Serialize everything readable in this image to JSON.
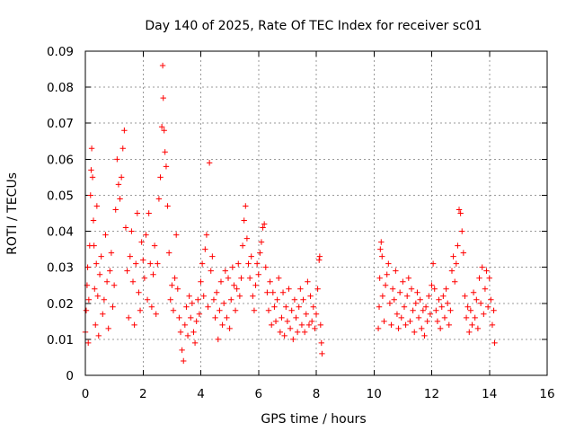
{
  "chart_data": {
    "type": "scatter",
    "title": "Day 140 of 2025, Rate Of TEC Index for receiver sc01",
    "xlabel": "GPS time / hours",
    "ylabel": "ROTI / TECUs",
    "xlim": [
      0,
      16
    ],
    "ylim": [
      0,
      0.09
    ],
    "x_ticks": [
      0,
      2,
      4,
      6,
      8,
      10,
      12,
      14,
      16
    ],
    "y_ticks": [
      0,
      0.01,
      0.02,
      0.03,
      0.04,
      0.05,
      0.06,
      0.07,
      0.08,
      0.09
    ],
    "x_tick_labels": [
      "0",
      "2",
      "4",
      "6",
      "8",
      "10",
      "12",
      "14",
      "16"
    ],
    "y_tick_labels": [
      "0",
      "0.01",
      "0.02",
      "0.03",
      "0.04",
      "0.05",
      "0.06",
      "0.07",
      "0.08",
      "0.09"
    ],
    "grid": true,
    "marker": "+",
    "color": "#ff0000",
    "series": [
      {
        "name": "sc01",
        "points": [
          [
            0.0,
            0.012
          ],
          [
            0.03,
            0.018
          ],
          [
            0.06,
            0.025
          ],
          [
            0.08,
            0.03
          ],
          [
            0.1,
            0.009
          ],
          [
            0.12,
            0.021
          ],
          [
            0.15,
            0.036
          ],
          [
            0.18,
            0.05
          ],
          [
            0.2,
            0.057
          ],
          [
            0.22,
            0.063
          ],
          [
            0.25,
            0.055
          ],
          [
            0.28,
            0.043
          ],
          [
            0.3,
            0.036
          ],
          [
            0.32,
            0.024
          ],
          [
            0.35,
            0.014
          ],
          [
            0.38,
            0.031
          ],
          [
            0.4,
            0.047
          ],
          [
            0.43,
            0.022
          ],
          [
            0.46,
            0.011
          ],
          [
            0.5,
            0.028
          ],
          [
            0.55,
            0.033
          ],
          [
            0.6,
            0.017
          ],
          [
            0.65,
            0.021
          ],
          [
            0.7,
            0.039
          ],
          [
            0.75,
            0.026
          ],
          [
            0.8,
            0.013
          ],
          [
            0.85,
            0.029
          ],
          [
            0.9,
            0.034
          ],
          [
            0.95,
            0.019
          ],
          [
            1.0,
            0.025
          ],
          [
            1.05,
            0.046
          ],
          [
            1.1,
            0.06
          ],
          [
            1.15,
            0.053
          ],
          [
            1.2,
            0.049
          ],
          [
            1.25,
            0.055
          ],
          [
            1.3,
            0.063
          ],
          [
            1.35,
            0.068
          ],
          [
            1.4,
            0.041
          ],
          [
            1.45,
            0.029
          ],
          [
            1.5,
            0.016
          ],
          [
            1.55,
            0.033
          ],
          [
            1.6,
            0.04
          ],
          [
            1.65,
            0.026
          ],
          [
            1.7,
            0.014
          ],
          [
            1.75,
            0.031
          ],
          [
            1.8,
            0.045
          ],
          [
            1.85,
            0.023
          ],
          [
            1.9,
            0.018
          ],
          [
            1.95,
            0.037
          ],
          [
            2.0,
            0.032
          ],
          [
            2.05,
            0.027
          ],
          [
            2.1,
            0.039
          ],
          [
            2.15,
            0.021
          ],
          [
            2.2,
            0.045
          ],
          [
            2.25,
            0.031
          ],
          [
            2.3,
            0.019
          ],
          [
            2.35,
            0.028
          ],
          [
            2.4,
            0.036
          ],
          [
            2.45,
            0.017
          ],
          [
            2.5,
            0.031
          ],
          [
            2.55,
            0.049
          ],
          [
            2.6,
            0.055
          ],
          [
            2.65,
            0.069
          ],
          [
            2.68,
            0.086
          ],
          [
            2.7,
            0.077
          ],
          [
            2.73,
            0.068
          ],
          [
            2.76,
            0.062
          ],
          [
            2.8,
            0.058
          ],
          [
            2.85,
            0.047
          ],
          [
            2.9,
            0.034
          ],
          [
            2.95,
            0.021
          ],
          [
            3.0,
            0.025
          ],
          [
            3.05,
            0.018
          ],
          [
            3.1,
            0.027
          ],
          [
            3.15,
            0.039
          ],
          [
            3.2,
            0.024
          ],
          [
            3.25,
            0.016
          ],
          [
            3.3,
            0.012
          ],
          [
            3.35,
            0.007
          ],
          [
            3.4,
            0.004
          ],
          [
            3.45,
            0.014
          ],
          [
            3.5,
            0.019
          ],
          [
            3.55,
            0.011
          ],
          [
            3.6,
            0.022
          ],
          [
            3.65,
            0.016
          ],
          [
            3.7,
            0.02
          ],
          [
            3.75,
            0.012
          ],
          [
            3.8,
            0.009
          ],
          [
            3.85,
            0.015
          ],
          [
            3.9,
            0.021
          ],
          [
            3.95,
            0.017
          ],
          [
            4.0,
            0.026
          ],
          [
            4.05,
            0.031
          ],
          [
            4.1,
            0.022
          ],
          [
            4.15,
            0.035
          ],
          [
            4.2,
            0.039
          ],
          [
            4.25,
            0.019
          ],
          [
            4.3,
            0.059
          ],
          [
            4.35,
            0.029
          ],
          [
            4.4,
            0.033
          ],
          [
            4.45,
            0.021
          ],
          [
            4.5,
            0.016
          ],
          [
            4.55,
            0.023
          ],
          [
            4.6,
            0.01
          ],
          [
            4.65,
            0.018
          ],
          [
            4.7,
            0.026
          ],
          [
            4.75,
            0.014
          ],
          [
            4.8,
            0.02
          ],
          [
            4.85,
            0.029
          ],
          [
            4.9,
            0.016
          ],
          [
            4.95,
            0.027
          ],
          [
            5.0,
            0.013
          ],
          [
            5.05,
            0.021
          ],
          [
            5.1,
            0.03
          ],
          [
            5.15,
            0.025
          ],
          [
            5.2,
            0.018
          ],
          [
            5.25,
            0.024
          ],
          [
            5.3,
            0.031
          ],
          [
            5.35,
            0.022
          ],
          [
            5.4,
            0.027
          ],
          [
            5.45,
            0.036
          ],
          [
            5.5,
            0.043
          ],
          [
            5.55,
            0.047
          ],
          [
            5.6,
            0.038
          ],
          [
            5.65,
            0.031
          ],
          [
            5.7,
            0.027
          ],
          [
            5.75,
            0.033
          ],
          [
            5.8,
            0.022
          ],
          [
            5.85,
            0.018
          ],
          [
            5.9,
            0.025
          ],
          [
            5.95,
            0.031
          ],
          [
            6.0,
            0.028
          ],
          [
            6.05,
            0.034
          ],
          [
            6.1,
            0.037
          ],
          [
            6.15,
            0.041
          ],
          [
            6.2,
            0.042
          ],
          [
            6.25,
            0.03
          ],
          [
            6.3,
            0.023
          ],
          [
            6.35,
            0.018
          ],
          [
            6.4,
            0.026
          ],
          [
            6.45,
            0.014
          ],
          [
            6.5,
            0.023
          ],
          [
            6.55,
            0.019
          ],
          [
            6.6,
            0.015
          ],
          [
            6.65,
            0.021
          ],
          [
            6.7,
            0.027
          ],
          [
            6.75,
            0.012
          ],
          [
            6.8,
            0.016
          ],
          [
            6.85,
            0.023
          ],
          [
            6.9,
            0.011
          ],
          [
            6.95,
            0.019
          ],
          [
            7.0,
            0.015
          ],
          [
            7.05,
            0.024
          ],
          [
            7.1,
            0.013
          ],
          [
            7.15,
            0.018
          ],
          [
            7.2,
            0.01
          ],
          [
            7.25,
            0.021
          ],
          [
            7.3,
            0.016
          ],
          [
            7.35,
            0.012
          ],
          [
            7.4,
            0.019
          ],
          [
            7.45,
            0.024
          ],
          [
            7.5,
            0.014
          ],
          [
            7.55,
            0.021
          ],
          [
            7.6,
            0.012
          ],
          [
            7.65,
            0.017
          ],
          [
            7.7,
            0.026
          ],
          [
            7.75,
            0.014
          ],
          [
            7.8,
            0.022
          ],
          [
            7.85,
            0.015
          ],
          [
            7.9,
            0.019
          ],
          [
            7.95,
            0.013
          ],
          [
            8.0,
            0.017
          ],
          [
            8.05,
            0.024
          ],
          [
            8.1,
            0.032
          ],
          [
            8.12,
            0.033
          ],
          [
            8.15,
            0.014
          ],
          [
            8.18,
            0.009
          ],
          [
            8.2,
            0.006
          ],
          [
            10.15,
            0.013
          ],
          [
            10.18,
            0.019
          ],
          [
            10.2,
            0.027
          ],
          [
            10.22,
            0.035
          ],
          [
            10.25,
            0.037
          ],
          [
            10.28,
            0.033
          ],
          [
            10.3,
            0.022
          ],
          [
            10.35,
            0.015
          ],
          [
            10.4,
            0.025
          ],
          [
            10.45,
            0.028
          ],
          [
            10.5,
            0.031
          ],
          [
            10.55,
            0.02
          ],
          [
            10.6,
            0.014
          ],
          [
            10.65,
            0.024
          ],
          [
            10.7,
            0.021
          ],
          [
            10.75,
            0.029
          ],
          [
            10.8,
            0.017
          ],
          [
            10.85,
            0.013
          ],
          [
            10.9,
            0.023
          ],
          [
            10.95,
            0.016
          ],
          [
            11.0,
            0.026
          ],
          [
            11.05,
            0.019
          ],
          [
            11.1,
            0.014
          ],
          [
            11.15,
            0.022
          ],
          [
            11.2,
            0.027
          ],
          [
            11.25,
            0.015
          ],
          [
            11.3,
            0.024
          ],
          [
            11.35,
            0.018
          ],
          [
            11.4,
            0.012
          ],
          [
            11.45,
            0.02
          ],
          [
            11.5,
            0.023
          ],
          [
            11.55,
            0.016
          ],
          [
            11.6,
            0.021
          ],
          [
            11.65,
            0.013
          ],
          [
            11.7,
            0.018
          ],
          [
            11.75,
            0.011
          ],
          [
            11.8,
            0.019
          ],
          [
            11.85,
            0.015
          ],
          [
            11.9,
            0.022
          ],
          [
            11.95,
            0.017
          ],
          [
            12.0,
            0.025
          ],
          [
            12.05,
            0.031
          ],
          [
            12.1,
            0.024
          ],
          [
            12.15,
            0.018
          ],
          [
            12.2,
            0.015
          ],
          [
            12.25,
            0.021
          ],
          [
            12.3,
            0.013
          ],
          [
            12.35,
            0.019
          ],
          [
            12.4,
            0.022
          ],
          [
            12.45,
            0.016
          ],
          [
            12.5,
            0.024
          ],
          [
            12.55,
            0.02
          ],
          [
            12.6,
            0.014
          ],
          [
            12.65,
            0.018
          ],
          [
            12.7,
            0.029
          ],
          [
            12.75,
            0.033
          ],
          [
            12.8,
            0.026
          ],
          [
            12.85,
            0.031
          ],
          [
            12.9,
            0.036
          ],
          [
            12.95,
            0.046
          ],
          [
            13.0,
            0.045
          ],
          [
            13.05,
            0.04
          ],
          [
            13.1,
            0.034
          ],
          [
            13.15,
            0.022
          ],
          [
            13.2,
            0.016
          ],
          [
            13.25,
            0.019
          ],
          [
            13.3,
            0.012
          ],
          [
            13.35,
            0.018
          ],
          [
            13.4,
            0.014
          ],
          [
            13.45,
            0.023
          ],
          [
            13.5,
            0.016
          ],
          [
            13.55,
            0.021
          ],
          [
            13.6,
            0.013
          ],
          [
            13.65,
            0.027
          ],
          [
            13.7,
            0.02
          ],
          [
            13.75,
            0.03
          ],
          [
            13.8,
            0.017
          ],
          [
            13.85,
            0.024
          ],
          [
            13.9,
            0.029
          ],
          [
            13.95,
            0.019
          ],
          [
            14.0,
            0.027
          ],
          [
            14.05,
            0.021
          ],
          [
            14.1,
            0.014
          ],
          [
            14.15,
            0.018
          ],
          [
            14.18,
            0.009
          ]
        ]
      }
    ]
  }
}
